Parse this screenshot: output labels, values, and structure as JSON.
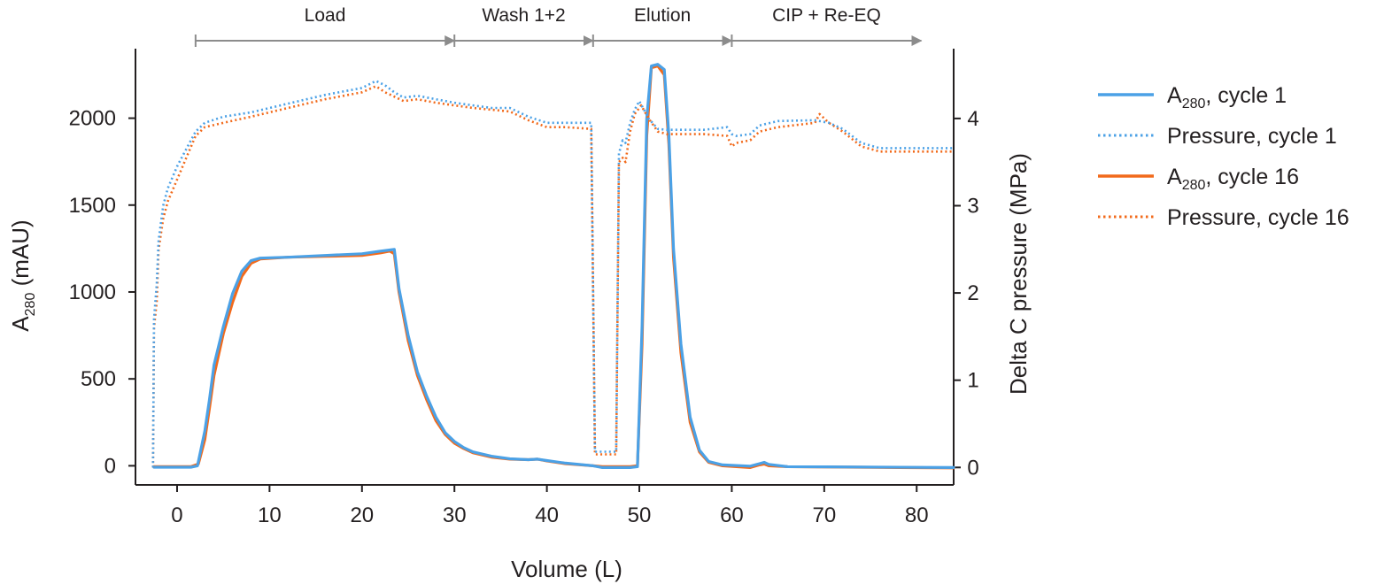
{
  "chart_data": {
    "type": "line",
    "xlabel": "Volume (L)",
    "ylabel_main": "A",
    "ylabel_sub": "280",
    "ylabel_unit": " (mAU)",
    "y2label": "Delta C pressure (MPa)",
    "xlim": [
      -4.5,
      84
    ],
    "ylim": [
      -110,
      2400
    ],
    "y2lim": [
      -0.2,
      4.8
    ],
    "x_ticks": [
      0,
      10,
      20,
      30,
      40,
      50,
      60,
      70,
      80
    ],
    "y_ticks": [
      0,
      500,
      1000,
      1500,
      2000
    ],
    "y2_ticks": [
      0,
      1,
      2,
      3,
      4
    ],
    "colors": {
      "cycle1": "#4ba1e6",
      "cycle16": "#f26a1b",
      "axis": "#231f20",
      "phase": "#8c8c8c"
    },
    "phases": [
      {
        "label": "Load",
        "start": 2,
        "end": 30
      },
      {
        "label": "Wash 1+2",
        "start": 30,
        "end": 45
      },
      {
        "label": "Elution",
        "start": 45,
        "end": 60
      },
      {
        "label": "CIP + Re-EQ",
        "start": 60,
        "end": 80.5
      }
    ],
    "legend": [
      {
        "main": "A",
        "sub": "280",
        "rest": ", cycle 1",
        "series": "a280_cycle1"
      },
      {
        "main": "Pressure, cycle 1",
        "sub": "",
        "rest": "",
        "series": "pressure_cycle1"
      },
      {
        "main": "A",
        "sub": "280",
        "rest": ", cycle 16",
        "series": "a280_cycle16"
      },
      {
        "main": "Pressure, cycle 16",
        "sub": "",
        "rest": "",
        "series": "pressure_cycle16"
      }
    ],
    "series": [
      {
        "name": "A280, cycle 16",
        "key": "a280_cycle16",
        "axis": "left",
        "style": "solid",
        "color": "#f26a1b",
        "points": [
          [
            -2.5,
            -5
          ],
          [
            1.5,
            -5
          ],
          [
            2.3,
            10
          ],
          [
            3,
            150
          ],
          [
            3.5,
            330
          ],
          [
            4,
            520
          ],
          [
            5,
            760
          ],
          [
            6,
            940
          ],
          [
            7,
            1090
          ],
          [
            8,
            1165
          ],
          [
            9,
            1190
          ],
          [
            12,
            1200
          ],
          [
            16,
            1205
          ],
          [
            20,
            1210
          ],
          [
            22,
            1225
          ],
          [
            23,
            1235
          ],
          [
            23.5,
            1220
          ],
          [
            24,
            1000
          ],
          [
            25,
            720
          ],
          [
            26,
            520
          ],
          [
            27,
            380
          ],
          [
            28,
            260
          ],
          [
            29,
            180
          ],
          [
            30,
            130
          ],
          [
            31,
            100
          ],
          [
            32,
            75
          ],
          [
            34,
            50
          ],
          [
            36,
            38
          ],
          [
            38,
            35
          ],
          [
            39,
            38
          ],
          [
            40,
            28
          ],
          [
            42,
            12
          ],
          [
            45,
            0
          ],
          [
            46,
            -5
          ],
          [
            49,
            -5
          ],
          [
            49.8,
            0
          ],
          [
            50.3,
            700
          ],
          [
            50.8,
            1900
          ],
          [
            51.3,
            2290
          ],
          [
            52,
            2300
          ],
          [
            52.7,
            2250
          ],
          [
            53.2,
            1850
          ],
          [
            53.7,
            1200
          ],
          [
            54.5,
            650
          ],
          [
            55.5,
            250
          ],
          [
            56.5,
            80
          ],
          [
            57.5,
            20
          ],
          [
            59,
            0
          ],
          [
            62,
            -10
          ],
          [
            63,
            5
          ],
          [
            63.5,
            10
          ],
          [
            64,
            0
          ],
          [
            66,
            -5
          ],
          [
            84,
            -12
          ]
        ]
      },
      {
        "name": "A280, cycle 1",
        "key": "a280_cycle1",
        "axis": "left",
        "style": "solid",
        "color": "#4ba1e6",
        "points": [
          [
            -2.5,
            -8
          ],
          [
            1.5,
            -8
          ],
          [
            2.2,
            0
          ],
          [
            3,
            200
          ],
          [
            3.5,
            380
          ],
          [
            4,
            580
          ],
          [
            5,
            800
          ],
          [
            6,
            990
          ],
          [
            7,
            1120
          ],
          [
            8,
            1180
          ],
          [
            9,
            1195
          ],
          [
            12,
            1200
          ],
          [
            16,
            1210
          ],
          [
            20,
            1220
          ],
          [
            22,
            1235
          ],
          [
            23.5,
            1245
          ],
          [
            24,
            1020
          ],
          [
            25,
            750
          ],
          [
            26,
            540
          ],
          [
            27,
            400
          ],
          [
            28,
            280
          ],
          [
            29,
            190
          ],
          [
            30,
            140
          ],
          [
            31,
            105
          ],
          [
            32,
            80
          ],
          [
            34,
            55
          ],
          [
            36,
            40
          ],
          [
            38,
            35
          ],
          [
            39,
            38
          ],
          [
            40,
            30
          ],
          [
            42,
            15
          ],
          [
            45,
            0
          ],
          [
            46,
            -10
          ],
          [
            49,
            -10
          ],
          [
            49.8,
            -5
          ],
          [
            50.3,
            800
          ],
          [
            50.8,
            2000
          ],
          [
            51.3,
            2300
          ],
          [
            52,
            2310
          ],
          [
            52.7,
            2280
          ],
          [
            53.2,
            1900
          ],
          [
            53.7,
            1250
          ],
          [
            54.5,
            700
          ],
          [
            55.5,
            280
          ],
          [
            56.5,
            90
          ],
          [
            57.5,
            25
          ],
          [
            59,
            5
          ],
          [
            62,
            -2
          ],
          [
            63,
            12
          ],
          [
            63.5,
            20
          ],
          [
            64,
            8
          ],
          [
            66,
            -5
          ],
          [
            84,
            -10
          ]
        ]
      },
      {
        "name": "Pressure, cycle 16",
        "key": "pressure_cycle16",
        "axis": "right",
        "style": "dotted",
        "color": "#f26a1b",
        "points": [
          [
            -2.6,
            0
          ],
          [
            -2.5,
            1.6
          ],
          [
            -2.2,
            1.9
          ],
          [
            -2,
            2.5
          ],
          [
            -1.5,
            2.85
          ],
          [
            -1,
            3.05
          ],
          [
            0,
            3.3
          ],
          [
            1,
            3.55
          ],
          [
            2,
            3.8
          ],
          [
            3,
            3.9
          ],
          [
            5,
            3.95
          ],
          [
            8,
            4.02
          ],
          [
            12,
            4.12
          ],
          [
            16,
            4.22
          ],
          [
            20,
            4.3
          ],
          [
            21.5,
            4.37
          ],
          [
            22.5,
            4.3
          ],
          [
            23.5,
            4.25
          ],
          [
            24.5,
            4.2
          ],
          [
            26,
            4.22
          ],
          [
            28,
            4.18
          ],
          [
            30,
            4.15
          ],
          [
            32,
            4.12
          ],
          [
            34,
            4.1
          ],
          [
            36,
            4.08
          ],
          [
            38,
            3.98
          ],
          [
            40,
            3.9
          ],
          [
            42,
            3.9
          ],
          [
            44.8,
            3.88
          ],
          [
            45.2,
            0.15
          ],
          [
            47.5,
            0.15
          ],
          [
            47.8,
            3.5
          ],
          [
            48.2,
            3.55
          ],
          [
            48.5,
            3.5
          ],
          [
            49,
            3.85
          ],
          [
            49.5,
            4.05
          ],
          [
            50.2,
            4.15
          ],
          [
            51,
            4.0
          ],
          [
            52,
            3.85
          ],
          [
            53,
            3.82
          ],
          [
            55,
            3.82
          ],
          [
            57,
            3.82
          ],
          [
            59.5,
            3.8
          ],
          [
            60,
            3.68
          ],
          [
            60.5,
            3.72
          ],
          [
            62,
            3.75
          ],
          [
            63,
            3.85
          ],
          [
            65,
            3.9
          ],
          [
            69,
            3.95
          ],
          [
            69.5,
            4.05
          ],
          [
            70.5,
            3.95
          ],
          [
            72,
            3.85
          ],
          [
            74,
            3.68
          ],
          [
            76,
            3.62
          ],
          [
            80,
            3.62
          ],
          [
            84,
            3.62
          ]
        ]
      },
      {
        "name": "Pressure, cycle 1",
        "key": "pressure_cycle1",
        "axis": "right",
        "style": "dotted",
        "color": "#4ba1e6",
        "points": [
          [
            -2.6,
            0
          ],
          [
            -2.5,
            1.7
          ],
          [
            -2.2,
            2.1
          ],
          [
            -2,
            2.6
          ],
          [
            -1.5,
            3.0
          ],
          [
            -1,
            3.2
          ],
          [
            0,
            3.45
          ],
          [
            1,
            3.65
          ],
          [
            2,
            3.85
          ],
          [
            3,
            3.95
          ],
          [
            5,
            4.02
          ],
          [
            8,
            4.07
          ],
          [
            12,
            4.17
          ],
          [
            16,
            4.27
          ],
          [
            20,
            4.35
          ],
          [
            21.5,
            4.43
          ],
          [
            22.5,
            4.38
          ],
          [
            23.5,
            4.3
          ],
          [
            24.5,
            4.24
          ],
          [
            26,
            4.26
          ],
          [
            28,
            4.22
          ],
          [
            30,
            4.18
          ],
          [
            32,
            4.15
          ],
          [
            34,
            4.12
          ],
          [
            36,
            4.12
          ],
          [
            38,
            4.02
          ],
          [
            40,
            3.95
          ],
          [
            42,
            3.95
          ],
          [
            44.8,
            3.95
          ],
          [
            45.2,
            0.18
          ],
          [
            47.5,
            0.18
          ],
          [
            47.8,
            3.6
          ],
          [
            48.2,
            3.75
          ],
          [
            48.5,
            3.72
          ],
          [
            49,
            3.95
          ],
          [
            49.5,
            4.1
          ],
          [
            50,
            4.2
          ],
          [
            51,
            4.0
          ],
          [
            52,
            3.88
          ],
          [
            53,
            3.87
          ],
          [
            55,
            3.87
          ],
          [
            57,
            3.87
          ],
          [
            59.5,
            3.9
          ],
          [
            60,
            3.82
          ],
          [
            60.5,
            3.8
          ],
          [
            62,
            3.82
          ],
          [
            63,
            3.92
          ],
          [
            65,
            3.97
          ],
          [
            69,
            3.98
          ],
          [
            70.5,
            3.95
          ],
          [
            72,
            3.88
          ],
          [
            74,
            3.72
          ],
          [
            76,
            3.66
          ],
          [
            80,
            3.66
          ],
          [
            84,
            3.66
          ]
        ]
      }
    ]
  }
}
